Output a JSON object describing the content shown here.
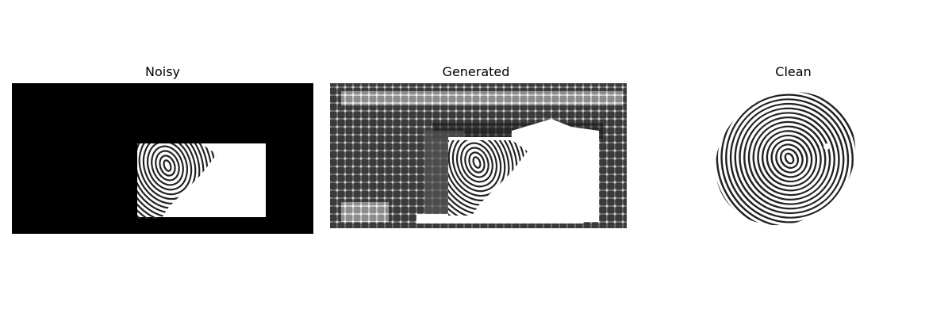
{
  "figure": {
    "panels": [
      {
        "title": "Noisy"
      },
      {
        "title": "Generated"
      },
      {
        "title": "Clean"
      }
    ]
  }
}
